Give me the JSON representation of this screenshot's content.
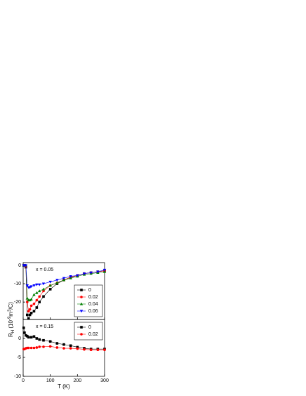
{
  "chart_data": [
    {
      "type": "line",
      "annotation": "x = 0.05",
      "ylabel": [
        {
          "text": "R",
          "shift": "none"
        },
        {
          "text": "H",
          "shift": "sub"
        },
        {
          "text": " (10",
          "shift": "none"
        },
        {
          "text": "-9",
          "shift": "sup"
        },
        {
          "text": "m",
          "shift": "none"
        },
        {
          "text": "3",
          "shift": "sup"
        },
        {
          "text": "/C)",
          "shift": "none"
        }
      ],
      "x": [
        2,
        5,
        10,
        15,
        20,
        25,
        30,
        40,
        50,
        60,
        75,
        100,
        125,
        150,
        175,
        200,
        225,
        250,
        275,
        300
      ],
      "xlim": [
        0,
        300
      ],
      "xticks": [
        0,
        100,
        200,
        300
      ],
      "ylim": [
        -29.5,
        1.5
      ],
      "yticks": [
        0,
        -10,
        -20
      ],
      "legend": "lower right",
      "series": [
        {
          "name": "0",
          "color": "#000000",
          "marker": "square",
          "values": [
            0,
            0,
            -1,
            -27,
            -29,
            -27,
            -26,
            -25,
            -23,
            -20,
            -17,
            -13,
            -10,
            -8,
            -6.5,
            -5.5,
            -4.5,
            -4,
            -3.5,
            -3
          ]
        },
        {
          "name": "0.02",
          "color": "#ff0000",
          "marker": "circle",
          "values": [
            0,
            0,
            -0.5,
            -20,
            -25,
            -24,
            -22,
            -21,
            -19,
            -17,
            -14,
            -11,
            -9.5,
            -8,
            -6.5,
            -5.5,
            -4.5,
            -4,
            -3.5,
            -3
          ]
        },
        {
          "name": "0.04",
          "color": "#008000",
          "marker": "triangle-up",
          "values": [
            0,
            0,
            0,
            -18,
            -19,
            -19,
            -18.5,
            -16,
            -15,
            -14,
            -13,
            -11,
            -9.5,
            -8,
            -7,
            -6,
            -5,
            -4.5,
            -4,
            -3.5
          ]
        },
        {
          "name": "0.06",
          "color": "#0000ff",
          "marker": "triangle-down",
          "values": [
            0,
            0,
            0,
            -11,
            -12,
            -12,
            -11.5,
            -11,
            -10.5,
            -10.5,
            -10,
            -9,
            -8,
            -7,
            -6,
            -5.5,
            -4.5,
            -4,
            -3.5,
            -2.5
          ]
        }
      ]
    },
    {
      "type": "line",
      "annotation": "x = 0.15",
      "xlabel": "T (K)",
      "x": [
        2,
        5,
        10,
        15,
        20,
        30,
        40,
        50,
        60,
        75,
        100,
        125,
        150,
        175,
        200,
        225,
        250,
        275,
        300
      ],
      "xlim": [
        0,
        300
      ],
      "xticks": [
        0,
        100,
        200,
        300
      ],
      "ylim": [
        -10,
        5
      ],
      "yticks": [
        0,
        -5,
        -10
      ],
      "legend": "upper right",
      "series": [
        {
          "name": "0",
          "color": "#000000",
          "marker": "square",
          "values": [
            2.8,
            1.5,
            0.8,
            0.6,
            0.3,
            0.3,
            0.5,
            0,
            -0.3,
            -0.5,
            -0.8,
            -1.3,
            -1.6,
            -1.9,
            -2.3,
            -2.6,
            -2.8,
            -2.8,
            -2.8
          ]
        },
        {
          "name": "0.02",
          "color": "#ff0000",
          "marker": "circle",
          "values": [
            -2.8,
            -2.8,
            -2.6,
            -2.5,
            -2.5,
            -2.5,
            -2.5,
            -2.4,
            -2.2,
            -2.2,
            -2.1,
            -2.4,
            -2.6,
            -2.6,
            -2.7,
            -2.9,
            -3,
            -3,
            -3
          ]
        }
      ]
    }
  ]
}
